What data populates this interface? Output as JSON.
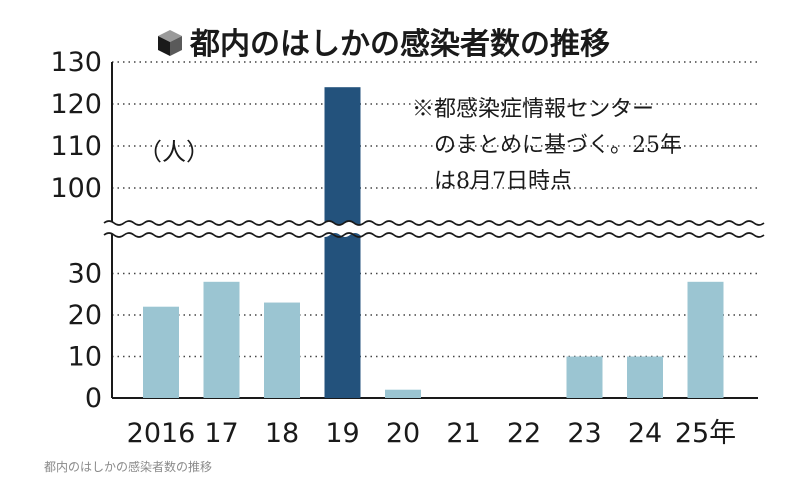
{
  "chart_data": {
    "type": "bar",
    "title": "都内のはしかの感染者数の推移",
    "unit_label": "（人）",
    "note_lines": [
      "※都感染症情報センター",
      "のまとめに基づく。25年",
      "は8月7日時点"
    ],
    "categories": [
      "2016",
      "17",
      "18",
      "19",
      "20",
      "21",
      "22",
      "23",
      "24",
      "25年"
    ],
    "values": [
      22,
      28,
      23,
      124,
      2,
      0,
      0,
      10,
      10,
      28
    ],
    "highlight_index": 3,
    "y_axis": {
      "broken": true,
      "lower_range": [
        0,
        35
      ],
      "upper_range": [
        95,
        130
      ],
      "lower_ticks": [
        "0",
        "10",
        "20",
        "30"
      ],
      "upper_ticks": [
        "100",
        "110",
        "120",
        "130"
      ]
    },
    "grid": "dotted",
    "colors": {
      "bar": "#9bc5d2",
      "highlight": "#23527c",
      "text": "#1a1a1a",
      "caption": "#8a8a8a"
    }
  },
  "caption": "都内のはしかの感染者数の推移"
}
